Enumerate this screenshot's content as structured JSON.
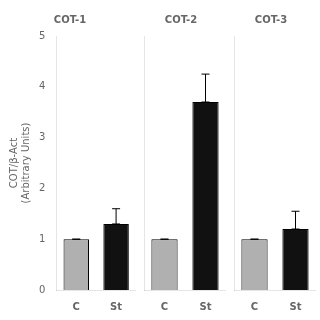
{
  "chart_data": [
    {
      "type": "bar",
      "title": "COT-1",
      "categories": [
        "C",
        "St"
      ],
      "values": [
        1.0,
        1.3
      ],
      "colors": [
        "#b0b0b0",
        "#111111"
      ],
      "error_minus": [
        0.0,
        0
      ],
      "error_plus": [
        0.0,
        0.3
      ],
      "ylabel": "COT/β-Act\n(Arbitrary Units)",
      "ylim": [
        0,
        5
      ],
      "yticks": [
        0,
        1,
        2,
        3,
        4,
        5
      ],
      "grid": false
    },
    {
      "type": "bar",
      "title": "COT-2",
      "categories": [
        "C",
        "St"
      ],
      "values": [
        1.0,
        3.7
      ],
      "colors": [
        "#b0b0b0",
        "#111111"
      ],
      "error_minus": [
        0.0,
        0
      ],
      "error_plus": [
        0.0,
        0.55
      ],
      "ylim": [
        0,
        5
      ],
      "yticks": [
        0,
        1,
        2,
        3,
        4,
        5
      ],
      "grid": false,
      "tick_labels": "x"
    },
    {
      "type": "bar",
      "title": "COT-3",
      "categories": [
        "C",
        "St"
      ],
      "values": [
        1.0,
        1.2
      ],
      "colors": [
        "#b0b0b0",
        "#111111"
      ],
      "error_minus": [
        0.0,
        0
      ],
      "error_plus": [
        0.0,
        0.35
      ],
      "ylim": [
        0,
        5
      ],
      "yticks": [
        0,
        1,
        2,
        3,
        4,
        5
      ],
      "grid": false,
      "tick_labels": "x"
    }
  ]
}
